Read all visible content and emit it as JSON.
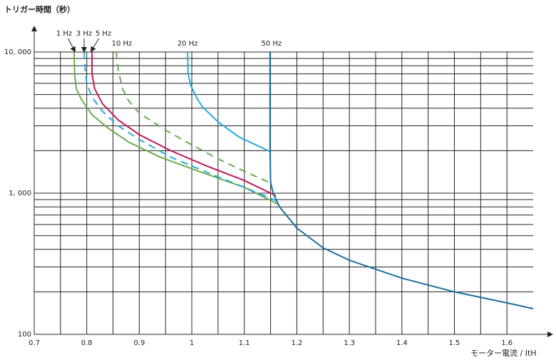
{
  "chart_data": {
    "type": "line",
    "ylabel": "トリガー時間（秒）",
    "xlabel": "モーター電流 / ItH",
    "log_y": true,
    "grid": true,
    "xlim": [
      0.7,
      1.65
    ],
    "ylim": [
      100,
      10000
    ],
    "xticks": [
      0.7,
      0.8,
      0.9,
      1,
      1.1,
      1.2,
      1.3,
      1.4,
      1.5,
      1.6
    ],
    "xminor": [
      0.75,
      0.85,
      0.95,
      1.05,
      1.15,
      1.25,
      1.35,
      1.45,
      1.55
    ],
    "yticks": [
      100,
      {
        "value": 1000,
        "label": "1, 000"
      },
      {
        "value": 10000,
        "label": "10, 000"
      }
    ],
    "yminor": [
      200,
      300,
      400,
      500,
      600,
      700,
      800,
      900,
      2000,
      3000,
      4000,
      5000,
      6000,
      7000,
      8000,
      9000
    ],
    "series": [
      {
        "name": "1 Hz",
        "color": "#6aac50",
        "dash": false,
        "x": [
          0.776,
          0.777,
          0.78,
          0.79,
          0.81,
          0.84,
          0.88,
          0.94,
          1.02,
          1.1,
          1.166
        ],
        "values": [
          10000,
          7000,
          5500,
          4600,
          3600,
          2900,
          2300,
          1800,
          1400,
          1100,
          830
        ]
      },
      {
        "name": "3 Hz",
        "color": "#27a9e1",
        "dash": true,
        "x": [
          0.795,
          0.797,
          0.8,
          0.81,
          0.83,
          0.86,
          0.9,
          0.96,
          1.04,
          1.1,
          1.162
        ],
        "values": [
          10000,
          7500,
          6000,
          4800,
          3800,
          3000,
          2400,
          1800,
          1350,
          1100,
          880
        ]
      },
      {
        "name": "5 Hz",
        "color": "#c2185b",
        "dash": false,
        "x": [
          0.81,
          0.81,
          0.815,
          0.83,
          0.86,
          0.9,
          0.96,
          1.03,
          1.1,
          1.16
        ],
        "values": [
          10000,
          7000,
          5500,
          4300,
          3300,
          2600,
          2000,
          1550,
          1230,
          960
        ]
      },
      {
        "name": "10 Hz",
        "color": "#6aac50",
        "dash": true,
        "x": [
          0.856,
          0.86,
          0.868,
          0.88,
          0.9,
          0.95,
          1.0,
          1.05,
          1.1,
          1.15
        ],
        "values": [
          10000,
          7500,
          5500,
          4500,
          3700,
          2800,
          2200,
          1750,
          1430,
          1180
        ]
      },
      {
        "name": "20 Hz",
        "color": "#27a9e1",
        "dash": false,
        "x": [
          0.992,
          0.993,
          0.998,
          1.01,
          1.02,
          1.05,
          1.09,
          1.148
        ],
        "values": [
          10000,
          7000,
          5800,
          4700,
          4100,
          3200,
          2500,
          1980
        ]
      },
      {
        "name": "50 Hz",
        "color": "#1a6fa0",
        "dash": false,
        "x": [
          1.149,
          1.149,
          1.15,
          1.155,
          1.167,
          1.2,
          1.25,
          1.3,
          1.4,
          1.5,
          1.6,
          1.65
        ],
        "values": [
          10000,
          2000,
          1200,
          1000,
          800,
          566,
          410,
          335,
          250,
          200,
          167,
          152
        ]
      }
    ]
  }
}
